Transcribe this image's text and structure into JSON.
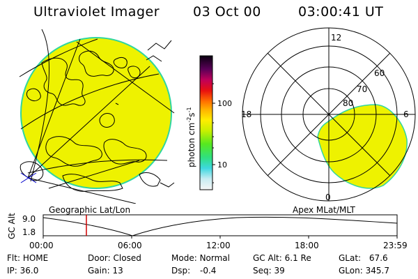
{
  "header": {
    "title": "Ultraviolet Imager",
    "date": "03 Oct 00",
    "time": "03:00:41 UT"
  },
  "colorbar": {
    "label": "photon cm",
    "label_exp1": "-2",
    "label_s": "s",
    "label_exp2": "-1",
    "ticks": [
      "100",
      "10"
    ]
  },
  "panels": {
    "geo_label": "Geographic Lat/Lon",
    "polar_label": "Apex MLat/MLT",
    "polar_mlt": [
      "12",
      "18",
      "6",
      "0"
    ],
    "polar_lat": [
      "60",
      "70",
      "80"
    ]
  },
  "altitude_plot": {
    "ylabel": "GC Alt",
    "yticks": [
      "9.0",
      "1.8"
    ],
    "xticks": [
      "00:00",
      "06:00",
      "12:00",
      "18:00",
      "23:59"
    ],
    "marker_time": "03:00:41"
  },
  "info": {
    "flt_label": "Flt:",
    "flt_value": "HOME",
    "door_label": "Door:",
    "door_value": "Closed",
    "mode_label": "Mode:",
    "mode_value": "Normal",
    "gcalt_label": "GC Alt:",
    "gcalt_value": "6.1 Re",
    "glat_label": "GLat:",
    "glat_value": "67.6",
    "ip_label": "IP:",
    "ip_value": "36.0",
    "gain_label": "Gain:",
    "gain_value": "13",
    "dsp_label": "Dsp:",
    "dsp_value": "-0.4",
    "seq_label": "Seq:",
    "seq_value": "39",
    "glon_label": "GLon:",
    "glon_value": "345.7"
  },
  "colors": {
    "fill": "#eef200",
    "limb": "#2fd6a0",
    "marker": "#d00000"
  }
}
